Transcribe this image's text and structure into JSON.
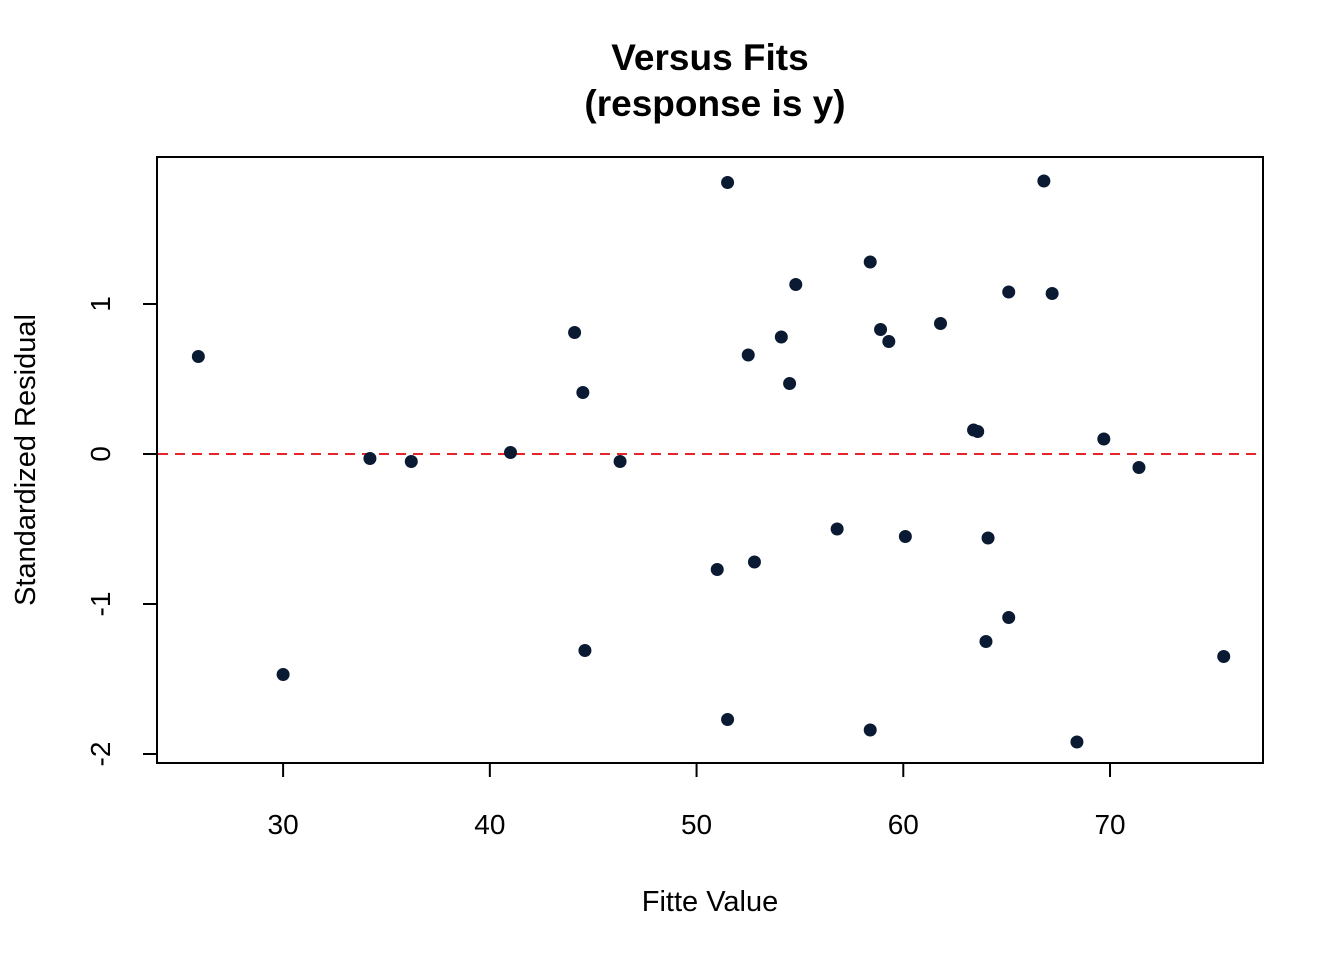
{
  "chart_data": {
    "type": "scatter",
    "title": "Versus Fits",
    "subtitle": "(response is y)",
    "xlabel": "Fitte Value",
    "ylabel": "Standardized Residual",
    "xlim": [
      23.9,
      77.4
    ],
    "ylim": [
      -2.06,
      1.98
    ],
    "x_ticks": [
      30,
      40,
      50,
      60,
      70
    ],
    "y_ticks": [
      -2,
      -1,
      0,
      1
    ],
    "x_tick_labels": [
      "30",
      "40",
      "50",
      "60",
      "70"
    ],
    "y_tick_labels": [
      "-2",
      "-1",
      "0",
      "1"
    ],
    "grid": false,
    "reference_line": {
      "y": 0,
      "style": "dashed",
      "color": "#e8242b"
    },
    "point_color": "#0b1a33",
    "points": [
      {
        "x": 25.9,
        "y": 0.65
      },
      {
        "x": 30.0,
        "y": -1.47
      },
      {
        "x": 34.2,
        "y": -0.03
      },
      {
        "x": 36.2,
        "y": -0.05
      },
      {
        "x": 41.0,
        "y": 0.01
      },
      {
        "x": 44.1,
        "y": 0.81
      },
      {
        "x": 44.5,
        "y": 0.41
      },
      {
        "x": 44.6,
        "y": -1.31
      },
      {
        "x": 46.3,
        "y": -0.05
      },
      {
        "x": 51.0,
        "y": -0.77
      },
      {
        "x": 51.5,
        "y": 1.81
      },
      {
        "x": 51.5,
        "y": -1.77
      },
      {
        "x": 52.5,
        "y": 0.66
      },
      {
        "x": 52.8,
        "y": -0.72
      },
      {
        "x": 54.1,
        "y": 0.78
      },
      {
        "x": 54.5,
        "y": 0.47
      },
      {
        "x": 54.8,
        "y": 1.13
      },
      {
        "x": 56.8,
        "y": -0.5
      },
      {
        "x": 58.4,
        "y": 1.28
      },
      {
        "x": 58.4,
        "y": -1.84
      },
      {
        "x": 58.9,
        "y": 0.83
      },
      {
        "x": 59.3,
        "y": 0.75
      },
      {
        "x": 60.1,
        "y": -0.55
      },
      {
        "x": 61.8,
        "y": 0.87
      },
      {
        "x": 63.4,
        "y": 0.16
      },
      {
        "x": 63.6,
        "y": 0.15
      },
      {
        "x": 64.0,
        "y": -1.25
      },
      {
        "x": 64.1,
        "y": -0.56
      },
      {
        "x": 65.1,
        "y": 1.08
      },
      {
        "x": 65.1,
        "y": -1.09
      },
      {
        "x": 66.8,
        "y": 1.82
      },
      {
        "x": 67.2,
        "y": 1.07
      },
      {
        "x": 68.4,
        "y": -1.92
      },
      {
        "x": 69.7,
        "y": 0.1
      },
      {
        "x": 71.4,
        "y": -0.09
      },
      {
        "x": 75.5,
        "y": -1.35
      }
    ]
  }
}
